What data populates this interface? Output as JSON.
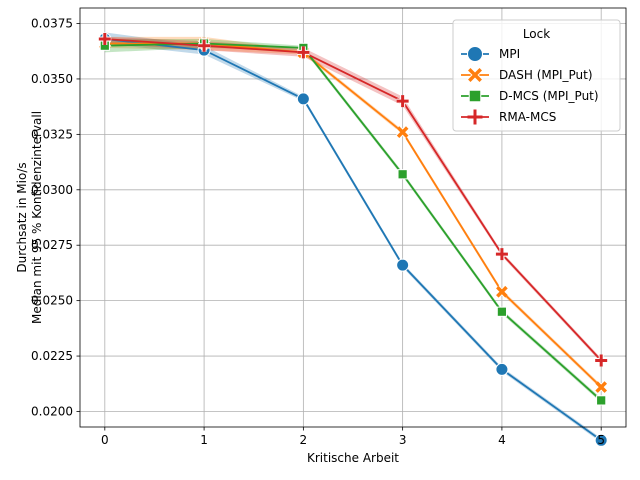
{
  "chart_data": {
    "type": "line",
    "xlabel": "Kritische Arbeit",
    "ylabel_lines": [
      "Durchsatz in Mio/s",
      "Median mit 95 % Konfidenzintervall"
    ],
    "x": [
      0,
      1,
      2,
      3,
      4,
      5
    ],
    "x_ticks": [
      "0",
      "1",
      "2",
      "3",
      "4",
      "5"
    ],
    "xlim": [
      -0.25,
      5.25
    ],
    "y_ticks": [
      "0.0200",
      "0.0225",
      "0.0250",
      "0.0275",
      "0.0300",
      "0.0325",
      "0.0350",
      "0.0375"
    ],
    "y_tick_values": [
      0.02,
      0.0225,
      0.025,
      0.0275,
      0.03,
      0.0325,
      0.035,
      0.0375
    ],
    "ylim": [
      0.0193,
      0.0382
    ],
    "grid": true,
    "legend": {
      "title": "Lock",
      "placement": "top-right"
    },
    "series": [
      {
        "name": "MPI",
        "color": "#1f77b4",
        "marker": "circle",
        "values": [
          0.0368,
          0.0363,
          0.0341,
          0.0266,
          0.0219,
          0.0187
        ],
        "ci_low": [
          0.0366,
          0.0361,
          0.034,
          0.0265,
          0.0218,
          0.0186
        ],
        "ci_high": [
          0.0371,
          0.0365,
          0.0342,
          0.0267,
          0.022,
          0.0188
        ]
      },
      {
        "name": "DASH (MPI_Put)",
        "color": "#ff7f0e",
        "marker": "x",
        "values": [
          0.0366,
          0.0366,
          0.0362,
          0.0326,
          0.0254,
          0.0211
        ],
        "ci_low": [
          0.0364,
          0.0363,
          0.0361,
          0.0325,
          0.0253,
          0.021
        ],
        "ci_high": [
          0.0369,
          0.0369,
          0.0363,
          0.0327,
          0.0255,
          0.0212
        ]
      },
      {
        "name": "D-MCS (MPI_Put)",
        "color": "#2ca02c",
        "marker": "square",
        "values": [
          0.0365,
          0.0366,
          0.0364,
          0.0307,
          0.0245,
          0.0205
        ],
        "ci_low": [
          0.0362,
          0.0364,
          0.0363,
          0.0306,
          0.0244,
          0.0204
        ],
        "ci_high": [
          0.0368,
          0.0368,
          0.0365,
          0.0308,
          0.0246,
          0.0206
        ]
      },
      {
        "name": "RMA-MCS",
        "color": "#d62728",
        "marker": "plus",
        "values": [
          0.0368,
          0.0365,
          0.0362,
          0.034,
          0.0271,
          0.0223
        ],
        "ci_low": [
          0.0366,
          0.0363,
          0.036,
          0.0338,
          0.027,
          0.0222
        ],
        "ci_high": [
          0.0369,
          0.0367,
          0.0364,
          0.0342,
          0.0272,
          0.0224
        ]
      }
    ]
  }
}
